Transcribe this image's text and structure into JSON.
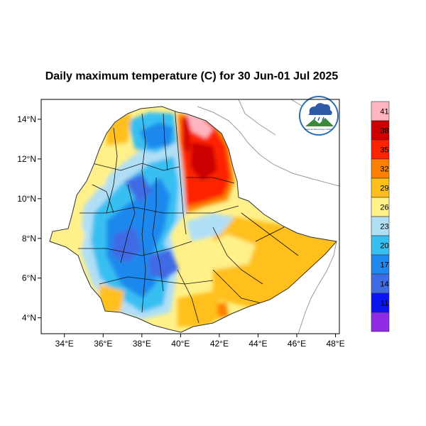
{
  "title": "Daily maximum temperature (C) for 30 Jun-01 Jul 2025",
  "chart_data": {
    "type": "heatmap",
    "title": "Daily maximum temperature (C) for 30 Jun-01 Jul 2025",
    "x_ticks": [
      {
        "value": 34,
        "label": "34°E"
      },
      {
        "value": 36,
        "label": "36°E"
      },
      {
        "value": 38,
        "label": "38°E"
      },
      {
        "value": 40,
        "label": "40°E"
      },
      {
        "value": 42,
        "label": "42°E"
      },
      {
        "value": 44,
        "label": "44°E"
      },
      {
        "value": 46,
        "label": "46°E"
      },
      {
        "value": 48,
        "label": "48°E"
      }
    ],
    "y_ticks": [
      {
        "value": 14,
        "label": "14°N"
      },
      {
        "value": 12,
        "label": "12°N"
      },
      {
        "value": 10,
        "label": "10°N"
      },
      {
        "value": 8,
        "label": "8°N"
      },
      {
        "value": 6,
        "label": "6°N"
      },
      {
        "value": 4,
        "label": "4°N"
      }
    ],
    "xlim": [
      32.8,
      48.2
    ],
    "ylim": [
      3.2,
      15.0
    ],
    "colorbar": {
      "levels": [
        "41",
        "38",
        "35",
        "32",
        "29",
        "26",
        "23",
        "20",
        "17",
        "14",
        "11"
      ],
      "colors": [
        "#ffb6c1",
        "#cc0000",
        "#ff2200",
        "#ff8000",
        "#ffbf1a",
        "#fff08a",
        "#b0dff5",
        "#38bff2",
        "#1e88ee",
        "#3f6be4",
        "#0a14f0",
        "#8f2be6"
      ]
    }
  },
  "logo": {
    "text": "National Meteorology Institute"
  }
}
